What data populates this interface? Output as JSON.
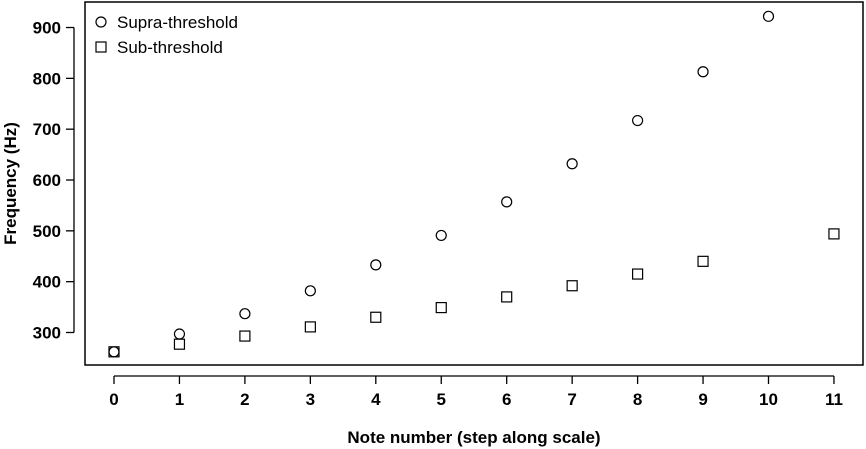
{
  "chart_data": {
    "type": "scatter",
    "xlabel": "Note number (step along scale)",
    "ylabel": "Frequency (Hz)",
    "xlim": [
      -0.3,
      11.3
    ],
    "ylim": [
      240,
      940
    ],
    "x_ticks": [
      "0",
      "1",
      "2",
      "3",
      "4",
      "5",
      "6",
      "7",
      "8",
      "9",
      "10",
      "11"
    ],
    "y_ticks": [
      "300",
      "400",
      "500",
      "600",
      "700",
      "800",
      "900"
    ],
    "grid": false,
    "legend_position": "top-left",
    "series": [
      {
        "name": "Supra-threshold",
        "marker": "circle",
        "x": [
          0,
          1,
          2,
          3,
          4,
          5,
          6,
          7,
          8,
          9,
          10
        ],
        "y": [
          262,
          297,
          337,
          382,
          433,
          491,
          557,
          632,
          717,
          813,
          922
        ]
      },
      {
        "name": "Sub-threshold",
        "marker": "square",
        "x": [
          0,
          1,
          2,
          3,
          4,
          5,
          6,
          7,
          8,
          9,
          11
        ],
        "y": [
          262,
          277,
          293,
          311,
          330,
          349,
          370,
          392,
          415,
          440,
          494
        ]
      }
    ]
  }
}
